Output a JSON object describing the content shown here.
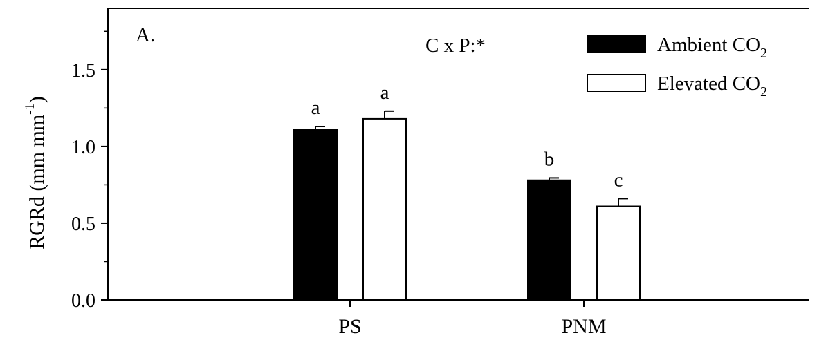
{
  "chart_data": {
    "type": "bar",
    "panel_label": "A.",
    "annotation": "C x P:*",
    "categories": [
      "PS",
      "PNM"
    ],
    "series": [
      {
        "name": "Ambient CO2",
        "values": [
          1.11,
          0.78
        ],
        "errors": [
          0.02,
          0.015
        ],
        "letters": [
          "a",
          "b"
        ],
        "fill": "#000000"
      },
      {
        "name": "Elevated CO2",
        "values": [
          1.18,
          0.61
        ],
        "errors": [
          0.05,
          0.05
        ],
        "letters": [
          "a",
          "c"
        ],
        "fill": "#ffffff"
      }
    ],
    "ylabel": "RGRd (mm mm",
    "ylabel_superscript": "-1",
    "ylabel_close": ")",
    "ylim": [
      0,
      1.9
    ],
    "yticks": [
      "0.0",
      "0.5",
      "1.0",
      "1.5"
    ],
    "legend_position": "top-right",
    "legend": {
      "entries": [
        {
          "text": "Ambient CO",
          "sub": "2"
        },
        {
          "text": "Elevated CO",
          "sub": "2"
        }
      ]
    }
  }
}
